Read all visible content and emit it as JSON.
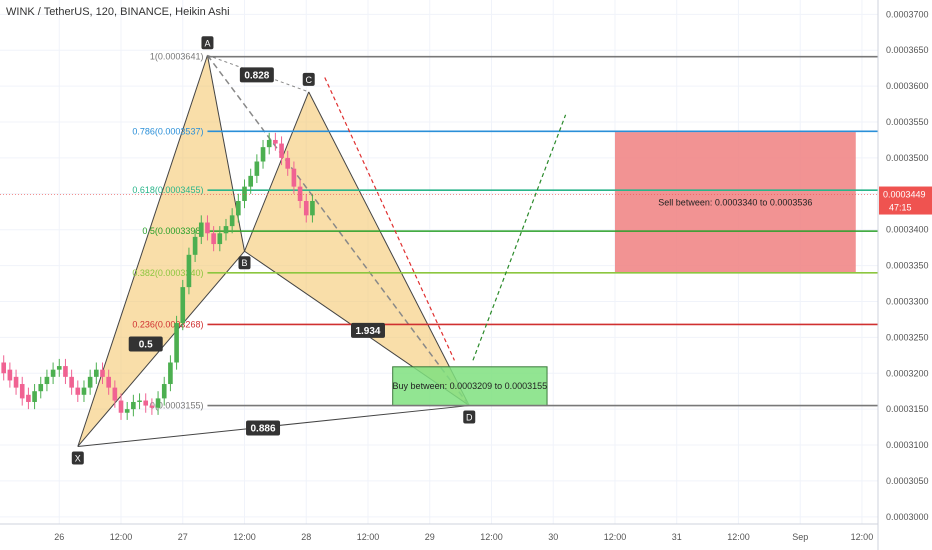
{
  "chart_data": {
    "type": "candlestick",
    "title": "WINK / TetherUS, 120, BINANCE, Heikin Ashi",
    "y_axis": {
      "ticks": [
        "0.0003000",
        "0.0003050",
        "0.0003100",
        "0.0003150",
        "0.0003200",
        "0.0003250",
        "0.0003300",
        "0.0003350",
        "0.0003400",
        "0.0003450",
        "0.0003500",
        "0.0003550",
        "0.0003600",
        "0.0003650",
        "0.0003700"
      ],
      "ylim": [
        0.000299,
        0.000372
      ]
    },
    "x_axis": {
      "ticks": [
        "26",
        "12:00",
        "27",
        "12:00",
        "28",
        "12:00",
        "29",
        "12:00",
        "30",
        "12:00",
        "31",
        "12:00",
        "Sep",
        "12:00"
      ],
      "tick_values": [
        1,
        6,
        11,
        16,
        21,
        26,
        31,
        36,
        41,
        46,
        51,
        56,
        61,
        66
      ],
      "xlim": [
        -3.8,
        67.3
      ]
    },
    "candles": [
      {
        "x": -3.5,
        "o": 0.0003215,
        "c": 0.00032
      },
      {
        "x": -3,
        "o": 0.0003205,
        "c": 0.000319
      },
      {
        "x": -2.5,
        "o": 0.0003195,
        "c": 0.000318
      },
      {
        "x": -2,
        "o": 0.0003185,
        "c": 0.0003165
      },
      {
        "x": -1.5,
        "o": 0.000317,
        "c": 0.000316
      },
      {
        "x": -1,
        "o": 0.000316,
        "c": 0.0003175
      },
      {
        "x": -0.5,
        "o": 0.0003175,
        "c": 0.0003185
      },
      {
        "x": 0,
        "o": 0.0003185,
        "c": 0.0003195
      },
      {
        "x": 0.5,
        "o": 0.0003195,
        "c": 0.0003205
      },
      {
        "x": 1,
        "o": 0.0003205,
        "c": 0.000321
      },
      {
        "x": 1.5,
        "o": 0.000321,
        "c": 0.0003195
      },
      {
        "x": 2,
        "o": 0.0003195,
        "c": 0.000318
      },
      {
        "x": 2.5,
        "o": 0.000318,
        "c": 0.000317
      },
      {
        "x": 3,
        "o": 0.000317,
        "c": 0.000318
      },
      {
        "x": 3.5,
        "o": 0.000318,
        "c": 0.0003195
      },
      {
        "x": 4,
        "o": 0.0003195,
        "c": 0.0003205
      },
      {
        "x": 4.5,
        "o": 0.0003205,
        "c": 0.0003195
      },
      {
        "x": 5,
        "o": 0.0003195,
        "c": 0.000318
      },
      {
        "x": 5.5,
        "o": 0.000318,
        "c": 0.0003162
      },
      {
        "x": 6,
        "o": 0.0003162,
        "c": 0.0003145
      },
      {
        "x": 6.5,
        "o": 0.0003145,
        "c": 0.000315
      },
      {
        "x": 7,
        "o": 0.000315,
        "c": 0.000316
      },
      {
        "x": 7.5,
        "o": 0.000316,
        "c": 0.0003162
      },
      {
        "x": 8,
        "o": 0.0003162,
        "c": 0.0003155
      },
      {
        "x": 8.5,
        "o": 0.0003155,
        "c": 0.0003152
      },
      {
        "x": 9,
        "o": 0.0003152,
        "c": 0.0003165
      },
      {
        "x": 9.5,
        "o": 0.0003165,
        "c": 0.0003185
      },
      {
        "x": 10,
        "o": 0.0003185,
        "c": 0.0003215
      },
      {
        "x": 10.5,
        "o": 0.0003215,
        "c": 0.000327
      },
      {
        "x": 11,
        "o": 0.000327,
        "c": 0.000332
      },
      {
        "x": 11.5,
        "o": 0.000332,
        "c": 0.0003365
      },
      {
        "x": 12,
        "o": 0.0003365,
        "c": 0.000339
      },
      {
        "x": 12.5,
        "o": 0.000339,
        "c": 0.000341
      },
      {
        "x": 13,
        "o": 0.000341,
        "c": 0.0003395
      },
      {
        "x": 13.5,
        "o": 0.0003395,
        "c": 0.000338
      },
      {
        "x": 14,
        "o": 0.000338,
        "c": 0.0003395
      },
      {
        "x": 14.5,
        "o": 0.0003395,
        "c": 0.0003405
      },
      {
        "x": 15,
        "o": 0.0003405,
        "c": 0.000342
      },
      {
        "x": 15.5,
        "o": 0.000342,
        "c": 0.000344
      },
      {
        "x": 16,
        "o": 0.000344,
        "c": 0.000346
      },
      {
        "x": 16.5,
        "o": 0.000346,
        "c": 0.0003475
      },
      {
        "x": 17,
        "o": 0.0003475,
        "c": 0.0003495
      },
      {
        "x": 17.5,
        "o": 0.0003495,
        "c": 0.0003515
      },
      {
        "x": 18,
        "o": 0.0003515,
        "c": 0.0003525
      },
      {
        "x": 18.5,
        "o": 0.0003525,
        "c": 0.000352
      },
      {
        "x": 19,
        "o": 0.000352,
        "c": 0.00035
      },
      {
        "x": 19.5,
        "o": 0.00035,
        "c": 0.0003485
      },
      {
        "x": 20,
        "o": 0.0003485,
        "c": 0.000346
      },
      {
        "x": 20.5,
        "o": 0.000346,
        "c": 0.000344
      },
      {
        "x": 21,
        "o": 0.000344,
        "c": 0.000342
      },
      {
        "x": 21.5,
        "o": 0.000342,
        "c": 0.000344
      }
    ],
    "fib_levels": [
      {
        "label": "1(0.0003641)",
        "value": 0.0003641,
        "color": "#787878"
      },
      {
        "label": "0.786(0.0003537)",
        "value": 0.0003537,
        "color": "#2a8fd8"
      },
      {
        "label": "0.618(0.0003455)",
        "value": 0.0003455,
        "color": "#2ab58a"
      },
      {
        "label": "0.5(0.0003398)",
        "value": 0.0003398,
        "color": "#2aa02a"
      },
      {
        "label": "0.382(0.0003340)",
        "value": 0.000334,
        "color": "#8cc63f"
      },
      {
        "label": "0.236(0.0003268)",
        "value": 0.0003268,
        "color": "#d03030"
      },
      {
        "label": "0(0.0003155)",
        "value": 0.0003155,
        "color": "#787878"
      }
    ],
    "pattern_points": [
      {
        "name": "X",
        "x": 2.5,
        "y": 0.0003098
      },
      {
        "name": "A",
        "x": 13,
        "y": 0.0003643
      },
      {
        "name": "B",
        "x": 16,
        "y": 0.000337
      },
      {
        "name": "C",
        "x": 21.2,
        "y": 0.0003592
      },
      {
        "name": "D",
        "x": 34.2,
        "y": 0.0003155
      }
    ],
    "ratios": [
      "0.828",
      "0.5",
      "1.934",
      "0.886"
    ],
    "buy_zone": {
      "text": "Buy between: 0.0003209 to 0.0003155",
      "x0": 28,
      "x1": 40.5,
      "y0": 0.0003155,
      "y1": 0.0003209
    },
    "sell_zone": {
      "text": "Sell between: 0.0003340 to 0.0003536",
      "x0": 46,
      "x1": 65.5,
      "y0": 0.000334,
      "y1": 0.0003536
    },
    "current_price": {
      "value": "0.0003449",
      "countdown": "47:15"
    },
    "colors": {
      "up": "#26a69a",
      "down": "#ef5350",
      "pattern_fill": "#f4c262",
      "buy": "#7fe07f",
      "sell": "#f08080"
    }
  }
}
